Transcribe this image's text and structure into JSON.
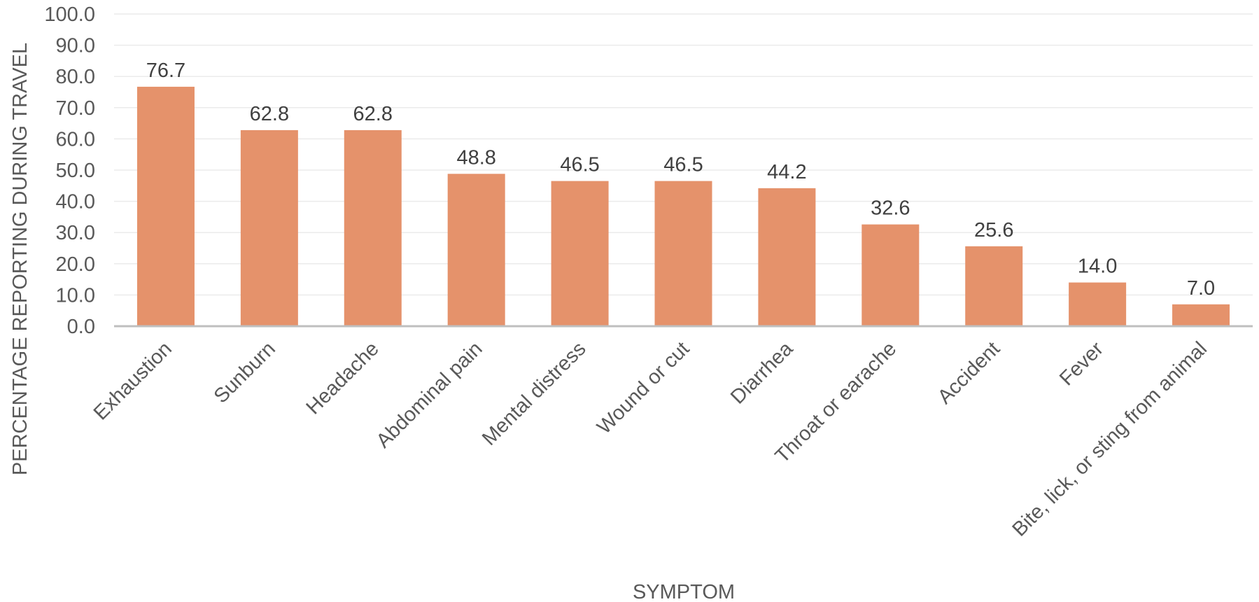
{
  "colors": {
    "bar": "#e5926b",
    "grid": "#ebebeb",
    "axis": "#bfbfbf",
    "text": "#595959",
    "label": "#404040"
  },
  "chart_data": {
    "type": "bar",
    "title": "",
    "xlabel": "SYMPTOM",
    "ylabel": "PERCENTAGE REPORTING DURING TRAVEL",
    "ylim": [
      0,
      100
    ],
    "yticks": [
      "0.0",
      "10.0",
      "20.0",
      "30.0",
      "40.0",
      "50.0",
      "60.0",
      "70.0",
      "80.0",
      "90.0",
      "100.0"
    ],
    "grid": true,
    "categories": [
      "Exhaustion",
      "Sunburn",
      "Headache",
      "Abdominal pain",
      "Mental distress",
      "Wound or cut",
      "Diarrhea",
      "Throat or earache",
      "Accident",
      "Fever",
      "Bite, lick, or sting from animal"
    ],
    "values": [
      76.7,
      62.8,
      62.8,
      48.8,
      46.5,
      46.5,
      44.2,
      32.6,
      25.6,
      14.0,
      7.0
    ],
    "data_labels": [
      "76.7",
      "62.8",
      "62.8",
      "48.8",
      "46.5",
      "46.5",
      "44.2",
      "32.6",
      "25.6",
      "14.0",
      "7.0"
    ]
  }
}
